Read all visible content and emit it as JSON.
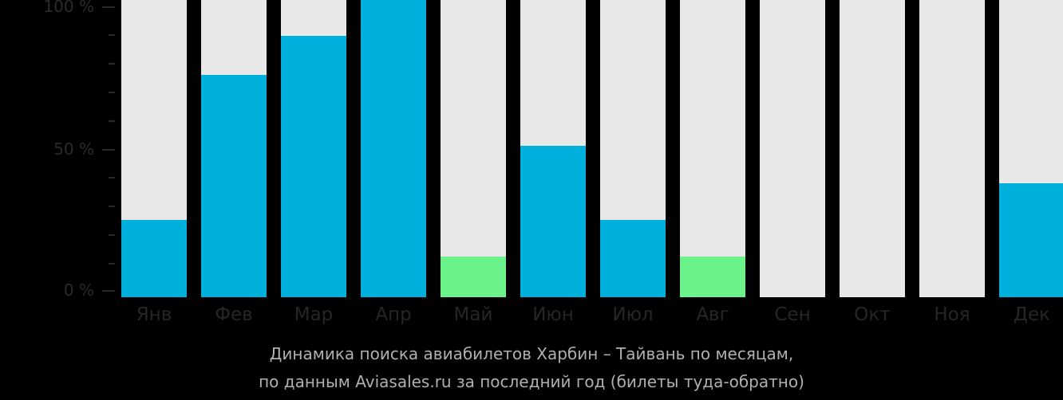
{
  "chart_data": {
    "type": "bar",
    "title": "Динамика поиска авиабилетов Харбин – Тайвань по месяцам,",
    "subtitle": "по данным Aviasales.ru за последний год (билеты туда-обратно)",
    "xlabel": "",
    "ylabel": "",
    "ylim": [
      0,
      100
    ],
    "yticks": [
      "0 %",
      "50 %",
      "100 %"
    ],
    "grid": false,
    "categories": [
      "Янв",
      "Фев",
      "Мар",
      "Апр",
      "Май",
      "Июн",
      "Июл",
      "Авг",
      "Сен",
      "Окт",
      "Ноя",
      "Дек"
    ],
    "values": [
      25,
      76,
      90,
      100,
      12,
      51,
      25,
      12,
      0,
      0,
      0,
      38
    ],
    "bar_colors": [
      "#00b0dc",
      "#00b0dc",
      "#00b0dc",
      "#00b0dc",
      "#6cf28a",
      "#00b0dc",
      "#00b0dc",
      "#6cf28a",
      "#00b0dc",
      "#00b0dc",
      "#00b0dc",
      "#00b0dc"
    ],
    "background_bar_color": "#e8e8e8"
  },
  "axis": {
    "y_labels": {
      "top": "100 %",
      "mid": "50 %",
      "bottom": "0 %"
    }
  },
  "caption": {
    "line1": "Динамика поиска авиабилетов Харбин – Тайвань по месяцам,",
    "line2": "по данным Aviasales.ru за последний год (билеты туда-обратно)"
  }
}
